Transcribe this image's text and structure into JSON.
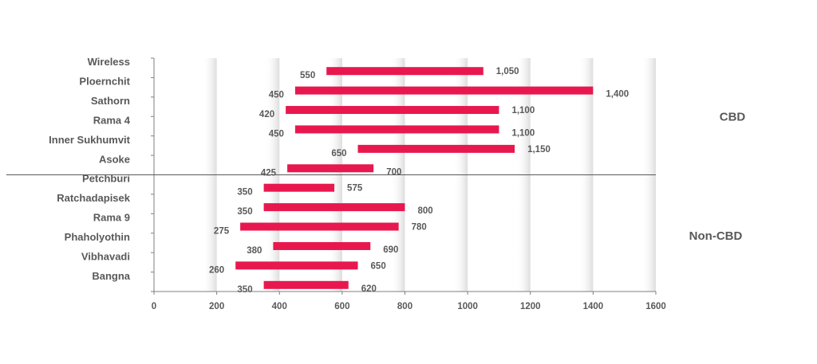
{
  "chart_data": {
    "type": "bar",
    "orientation": "horizontal-range",
    "categories": [
      "Wireless",
      "Ploernchit",
      "Sathorn",
      "Rama 4",
      "Inner Sukhumvit",
      "Asoke",
      "Petchburi",
      "Ratchadapisek",
      "Rama 9",
      "Phaholyothin",
      "Vibhavadi",
      "Bangna"
    ],
    "low": [
      550,
      450,
      420,
      450,
      650,
      425,
      350,
      350,
      275,
      380,
      260,
      350
    ],
    "high": [
      1050,
      1400,
      1100,
      1100,
      1150,
      700,
      575,
      800,
      780,
      690,
      650,
      620
    ],
    "low_labels": [
      "550",
      "450",
      "420",
      "450",
      "650",
      "425",
      "350",
      "350",
      "275",
      "380",
      "260",
      "350"
    ],
    "high_labels": [
      "1,050",
      "1,400",
      "1,100",
      "1,100",
      "1,150",
      "700",
      "575",
      "800",
      "780",
      "690",
      "650",
      "620"
    ],
    "groups": [
      {
        "name": "CBD",
        "categories": [
          "Wireless",
          "Ploernchit",
          "Sathorn",
          "Rama 4",
          "Inner Sukhumvit",
          "Asoke"
        ]
      },
      {
        "name": "Non-CBD",
        "categories": [
          "Petchburi",
          "Ratchadapisek",
          "Rama 9",
          "Phaholyothin",
          "Vibhavadi",
          "Bangna"
        ]
      }
    ],
    "xticks": [
      0,
      200,
      400,
      600,
      800,
      1000,
      1200,
      1400,
      1600
    ],
    "xlim": [
      0,
      1600
    ],
    "bar_color": "#e8184f",
    "label_color": "#595959",
    "title": "",
    "xlabel": "",
    "ylabel": ""
  }
}
